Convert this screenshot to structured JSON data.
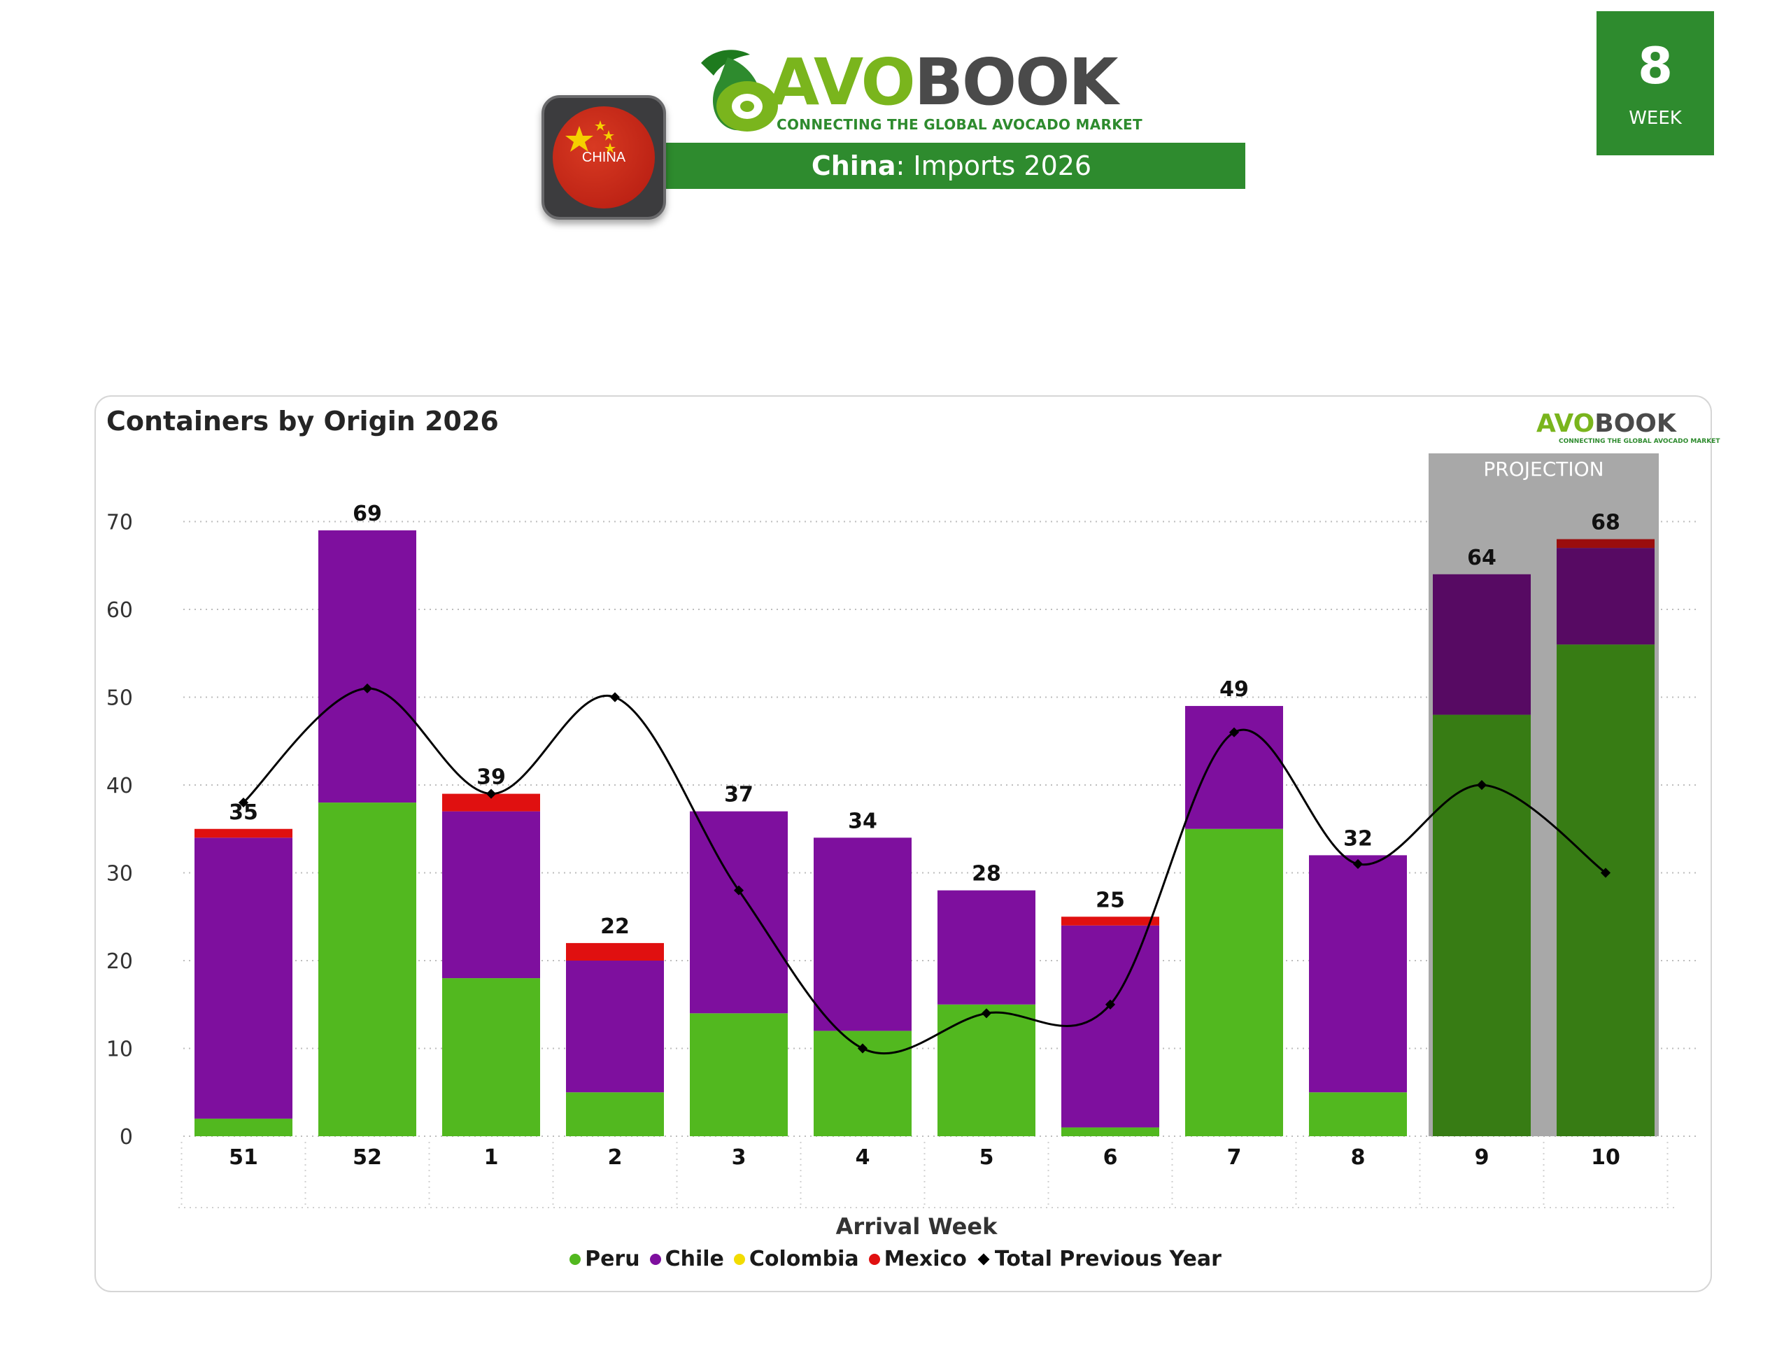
{
  "header": {
    "brand_avo": "AVO",
    "brand_book": "BOOK",
    "tagline": "CONNECTING THE GLOBAL AVOCADO MARKET",
    "title_country": "China",
    "title_rest": ": Imports 2026",
    "flag_label": "CHINA",
    "week_number": "8",
    "week_label": "WEEK"
  },
  "colors": {
    "peru": "#52b81f",
    "chile": "#7e0f9e",
    "colombia": "#f2dc00",
    "mexico": "#e01010",
    "total_prev": "#000000",
    "projection_bg": "#a8a8a8",
    "projection_green": "#377c14",
    "projection_purple": "#570a63",
    "projection_red": "#9a0d0d",
    "brand_green": "#2e8b2e"
  },
  "chart_data": {
    "type": "bar",
    "stacked": true,
    "title": "Containers by Origin 2026",
    "xlabel": "Arrival Week",
    "ylabel": "",
    "ylim": [
      0,
      72
    ],
    "yticks": [
      0,
      10,
      20,
      30,
      40,
      50,
      60,
      70
    ],
    "grid": true,
    "legend_position": "bottom",
    "categories": [
      "51",
      "52",
      "1",
      "2",
      "3",
      "4",
      "5",
      "6",
      "7",
      "8",
      "9",
      "10"
    ],
    "series": [
      {
        "name": "Peru",
        "values": [
          2,
          38,
          18,
          5,
          14,
          12,
          15,
          1,
          35,
          5,
          48,
          56
        ]
      },
      {
        "name": "Chile",
        "values": [
          32,
          31,
          19,
          15,
          23,
          22,
          13,
          23,
          14,
          27,
          16,
          11
        ]
      },
      {
        "name": "Colombia",
        "values": [
          0,
          0,
          0,
          0,
          0,
          0,
          0,
          0,
          0,
          0,
          0,
          0
        ]
      },
      {
        "name": "Mexico",
        "values": [
          1,
          0,
          2,
          2,
          0,
          0,
          0,
          1,
          0,
          0,
          0,
          1
        ]
      }
    ],
    "totals": [
      35,
      69,
      39,
      22,
      37,
      34,
      28,
      25,
      49,
      32,
      64,
      68
    ],
    "line_series": {
      "name": "Total Previous Year",
      "values": [
        38,
        51,
        39,
        50,
        28,
        10,
        14,
        15,
        46,
        31,
        40,
        30
      ]
    },
    "projection": {
      "label": "PROJECTION",
      "categories": [
        "9",
        "10"
      ]
    }
  }
}
